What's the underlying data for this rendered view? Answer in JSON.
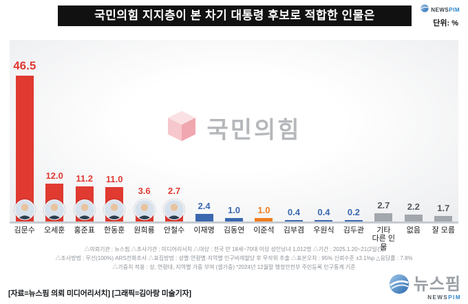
{
  "header": {
    "title": "국민의힘 지지층이 본 차기 대통령 후보로 적합한 인물은",
    "unit_label": "단위: %"
  },
  "top_logo": {
    "en_dark": "NEWS",
    "en_accent": "PIM"
  },
  "watermark": {
    "text": "국민의힘"
  },
  "chart_data": {
    "type": "bar",
    "title": "국민의힘 지지층이 본 차기 대통령 후보로 적합한 인물은",
    "unit": "%",
    "categories": [
      "김문수",
      "오세훈",
      "홍준표",
      "한동훈",
      "원희룡",
      "안철수",
      "이재명",
      "김동연",
      "이준석",
      "김부겸",
      "우원식",
      "김두관",
      "기타\n다른 인물",
      "없음",
      "잘 모름"
    ],
    "values": [
      46.5,
      12.0,
      11.2,
      11.0,
      3.6,
      2.7,
      2.4,
      1.0,
      1.0,
      0.4,
      0.4,
      0.2,
      2.7,
      2.2,
      1.7
    ],
    "colors": [
      "#e03a31",
      "#e03a31",
      "#e03a31",
      "#e03a31",
      "#e03a31",
      "#e03a31",
      "#3a68b0",
      "#3a68b0",
      "#f07d1f",
      "#3a68b0",
      "#3a68b0",
      "#3a68b0",
      "#a2a7ad",
      "#a2a7ad",
      "#a2a7ad"
    ],
    "label_colors": [
      "#e03a31",
      "#e03a31",
      "#e03a31",
      "#e03a31",
      "#e03a31",
      "#e03a31",
      "#3a68b0",
      "#3a68b0",
      "#f07d1f",
      "#3a68b0",
      "#3a68b0",
      "#3a68b0",
      "#55595e",
      "#55595e",
      "#55595e"
    ],
    "has_photo": [
      true,
      true,
      true,
      true,
      true,
      true,
      false,
      false,
      false,
      false,
      false,
      false,
      false,
      false,
      false
    ],
    "ylim": [
      0,
      50
    ],
    "grid": false,
    "value_labels": true,
    "legend": "none"
  },
  "footnotes": {
    "lines": [
      "△의뢰기관 : 뉴스핌 △조사기관 : 미디어리서치 △대상 : 전국 만 18세~70대 이상 성인남녀 1,012명 △기간 : 2025.1.20~21(2일간)",
      "△조사방법 : 무선(100%) ARS전화조사 △표집방법 : 성별·연령별·지역별 인구비례할당 후 무작위 추출 △표본오차 : 95% 신뢰수준 ±3.1%p △응답률 : 7.8%",
      "△가중치 적용 : 성, 연령대, 지역별 가중 부여 (셀가중) *2024년 12월말 행정안전부 주민등록 인구통계 기준"
    ]
  },
  "credits": {
    "text": "[자료=뉴스핌 의뢰 미디어리서치] [그래픽=김아랑 미술기자]"
  },
  "bottom_logo": {
    "kr": "뉴스핌",
    "en_dark": "NEWS",
    "en_accent": "PIM"
  },
  "colors": {
    "ppp_red": "#e03a31",
    "dp_blue": "#3a68b0",
    "reform_orange": "#f07d1f",
    "etc_gray": "#a2a7ad",
    "header_bg": "#111111",
    "baseline": "#c6cbd1"
  }
}
